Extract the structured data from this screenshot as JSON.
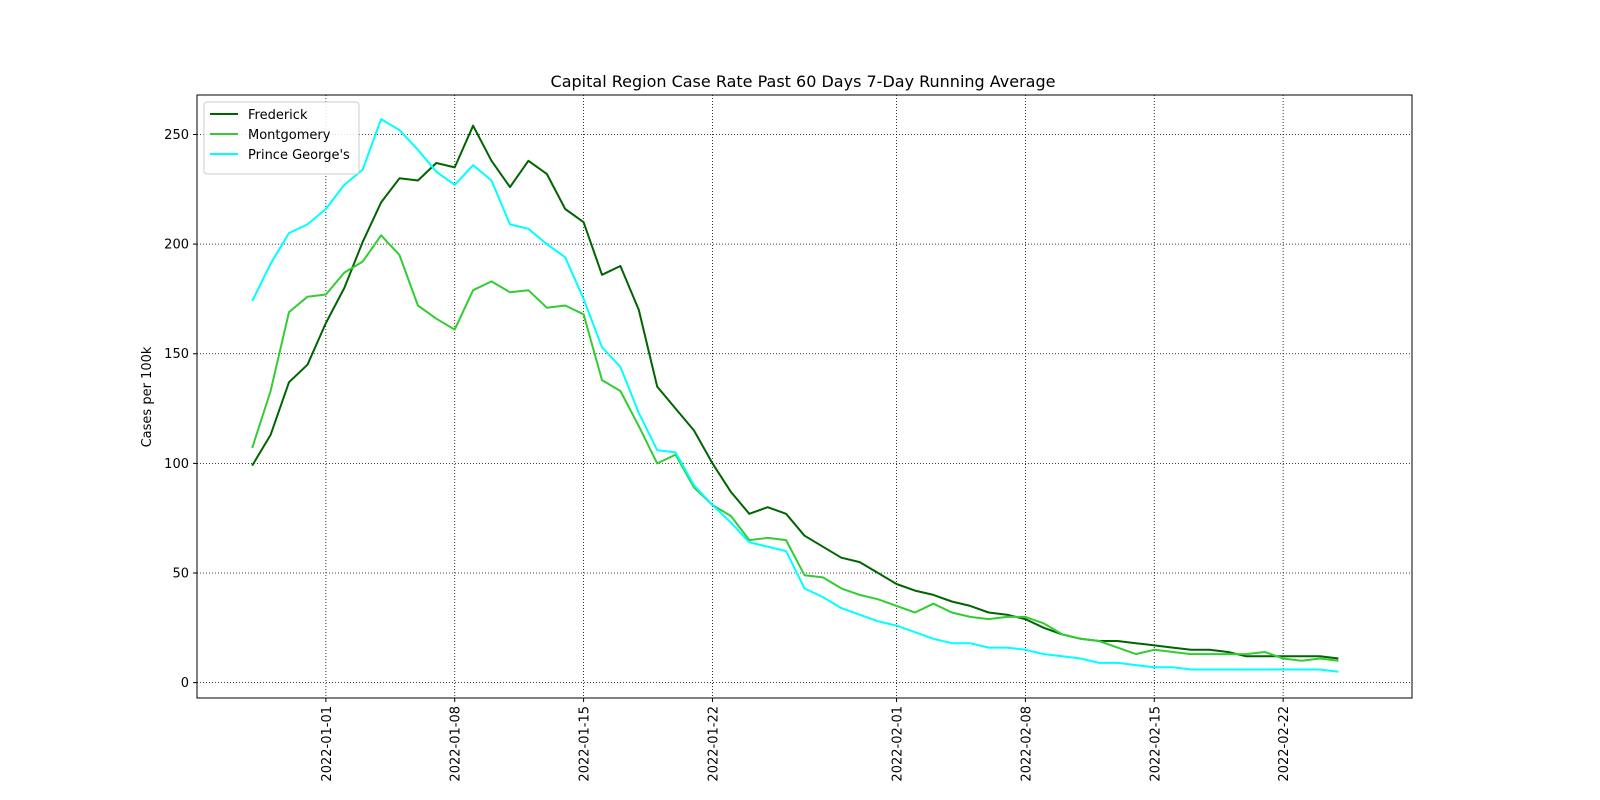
{
  "chart_data": {
    "type": "line",
    "title": "Capital Region Case Rate  Past 60 Days 7-Day Running Average",
    "xlabel": "",
    "ylabel": "Cases per 100k",
    "x_start": "2021-12-28",
    "x_end": "2022-02-26",
    "xlim": [
      "2021-12-25",
      "2022-03-01"
    ],
    "ylim": [
      -7,
      268
    ],
    "x_ticks": [
      "2022-01-01",
      "2022-01-08",
      "2022-01-15",
      "2022-01-22",
      "2022-02-01",
      "2022-02-08",
      "2022-02-15",
      "2022-02-22"
    ],
    "y_ticks": [
      0,
      50,
      100,
      150,
      200,
      250
    ],
    "grid": true,
    "grid_style": "dotted",
    "legend_position": "upper-left",
    "series": [
      {
        "name": "Frederick",
        "color": "#006400",
        "values": [
          99,
          113,
          137,
          145,
          164,
          180,
          201,
          219,
          230,
          229,
          237,
          235,
          254,
          238,
          226,
          238,
          232,
          216,
          210,
          186,
          190,
          170,
          135,
          125,
          115,
          100,
          87,
          77,
          80,
          77,
          67,
          62,
          57,
          55,
          50,
          45,
          42,
          40,
          37,
          35,
          32,
          31,
          29,
          25,
          22,
          20,
          19,
          19,
          18,
          17,
          16,
          15,
          15,
          14,
          12,
          12,
          12,
          12,
          12,
          11
        ]
      },
      {
        "name": "Montgomery",
        "color": "#32cd32",
        "values": [
          107,
          133,
          169,
          176,
          177,
          187,
          192,
          204,
          195,
          172,
          166,
          161,
          179,
          183,
          178,
          179,
          171,
          172,
          168,
          138,
          133,
          117,
          100,
          104,
          89,
          81,
          76,
          65,
          66,
          65,
          49,
          48,
          43,
          40,
          38,
          35,
          32,
          36,
          32,
          30,
          29,
          30,
          30,
          27,
          22,
          20,
          19,
          16,
          13,
          15,
          14,
          13,
          13,
          13,
          13,
          14,
          11,
          10,
          11,
          10
        ]
      },
      {
        "name": "Prince George's",
        "color": "#00ffff",
        "values": [
          174,
          191,
          205,
          209,
          216,
          227,
          234,
          257,
          252,
          243,
          233,
          227,
          236,
          229,
          209,
          207,
          200,
          194,
          175,
          153,
          144,
          123,
          106,
          105,
          90,
          81,
          73,
          64,
          62,
          60,
          43,
          39,
          34,
          31,
          28,
          26,
          23,
          20,
          18,
          18,
          16,
          16,
          15,
          13,
          12,
          11,
          9,
          9,
          8,
          7,
          7,
          6,
          6,
          6,
          6,
          6,
          6,
          6,
          6,
          5
        ]
      }
    ]
  }
}
